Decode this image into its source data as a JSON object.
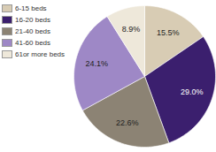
{
  "chart_data": {
    "type": "pie",
    "categories": [
      "6-15 beds",
      "16-20 beds",
      "21-40 beds",
      "41-60 beds",
      "61or more beds"
    ],
    "values": [
      15.5,
      29.0,
      22.6,
      24.1,
      8.9
    ],
    "value_labels": [
      "15.5%",
      "29.0%",
      "22.6%",
      "24.1%",
      "8.9%"
    ],
    "colors": [
      "#d8ccb4",
      "#3b1f6e",
      "#8c8374",
      "#9e88c6",
      "#eee8da"
    ],
    "data_labels": true,
    "legend": "top-left"
  }
}
